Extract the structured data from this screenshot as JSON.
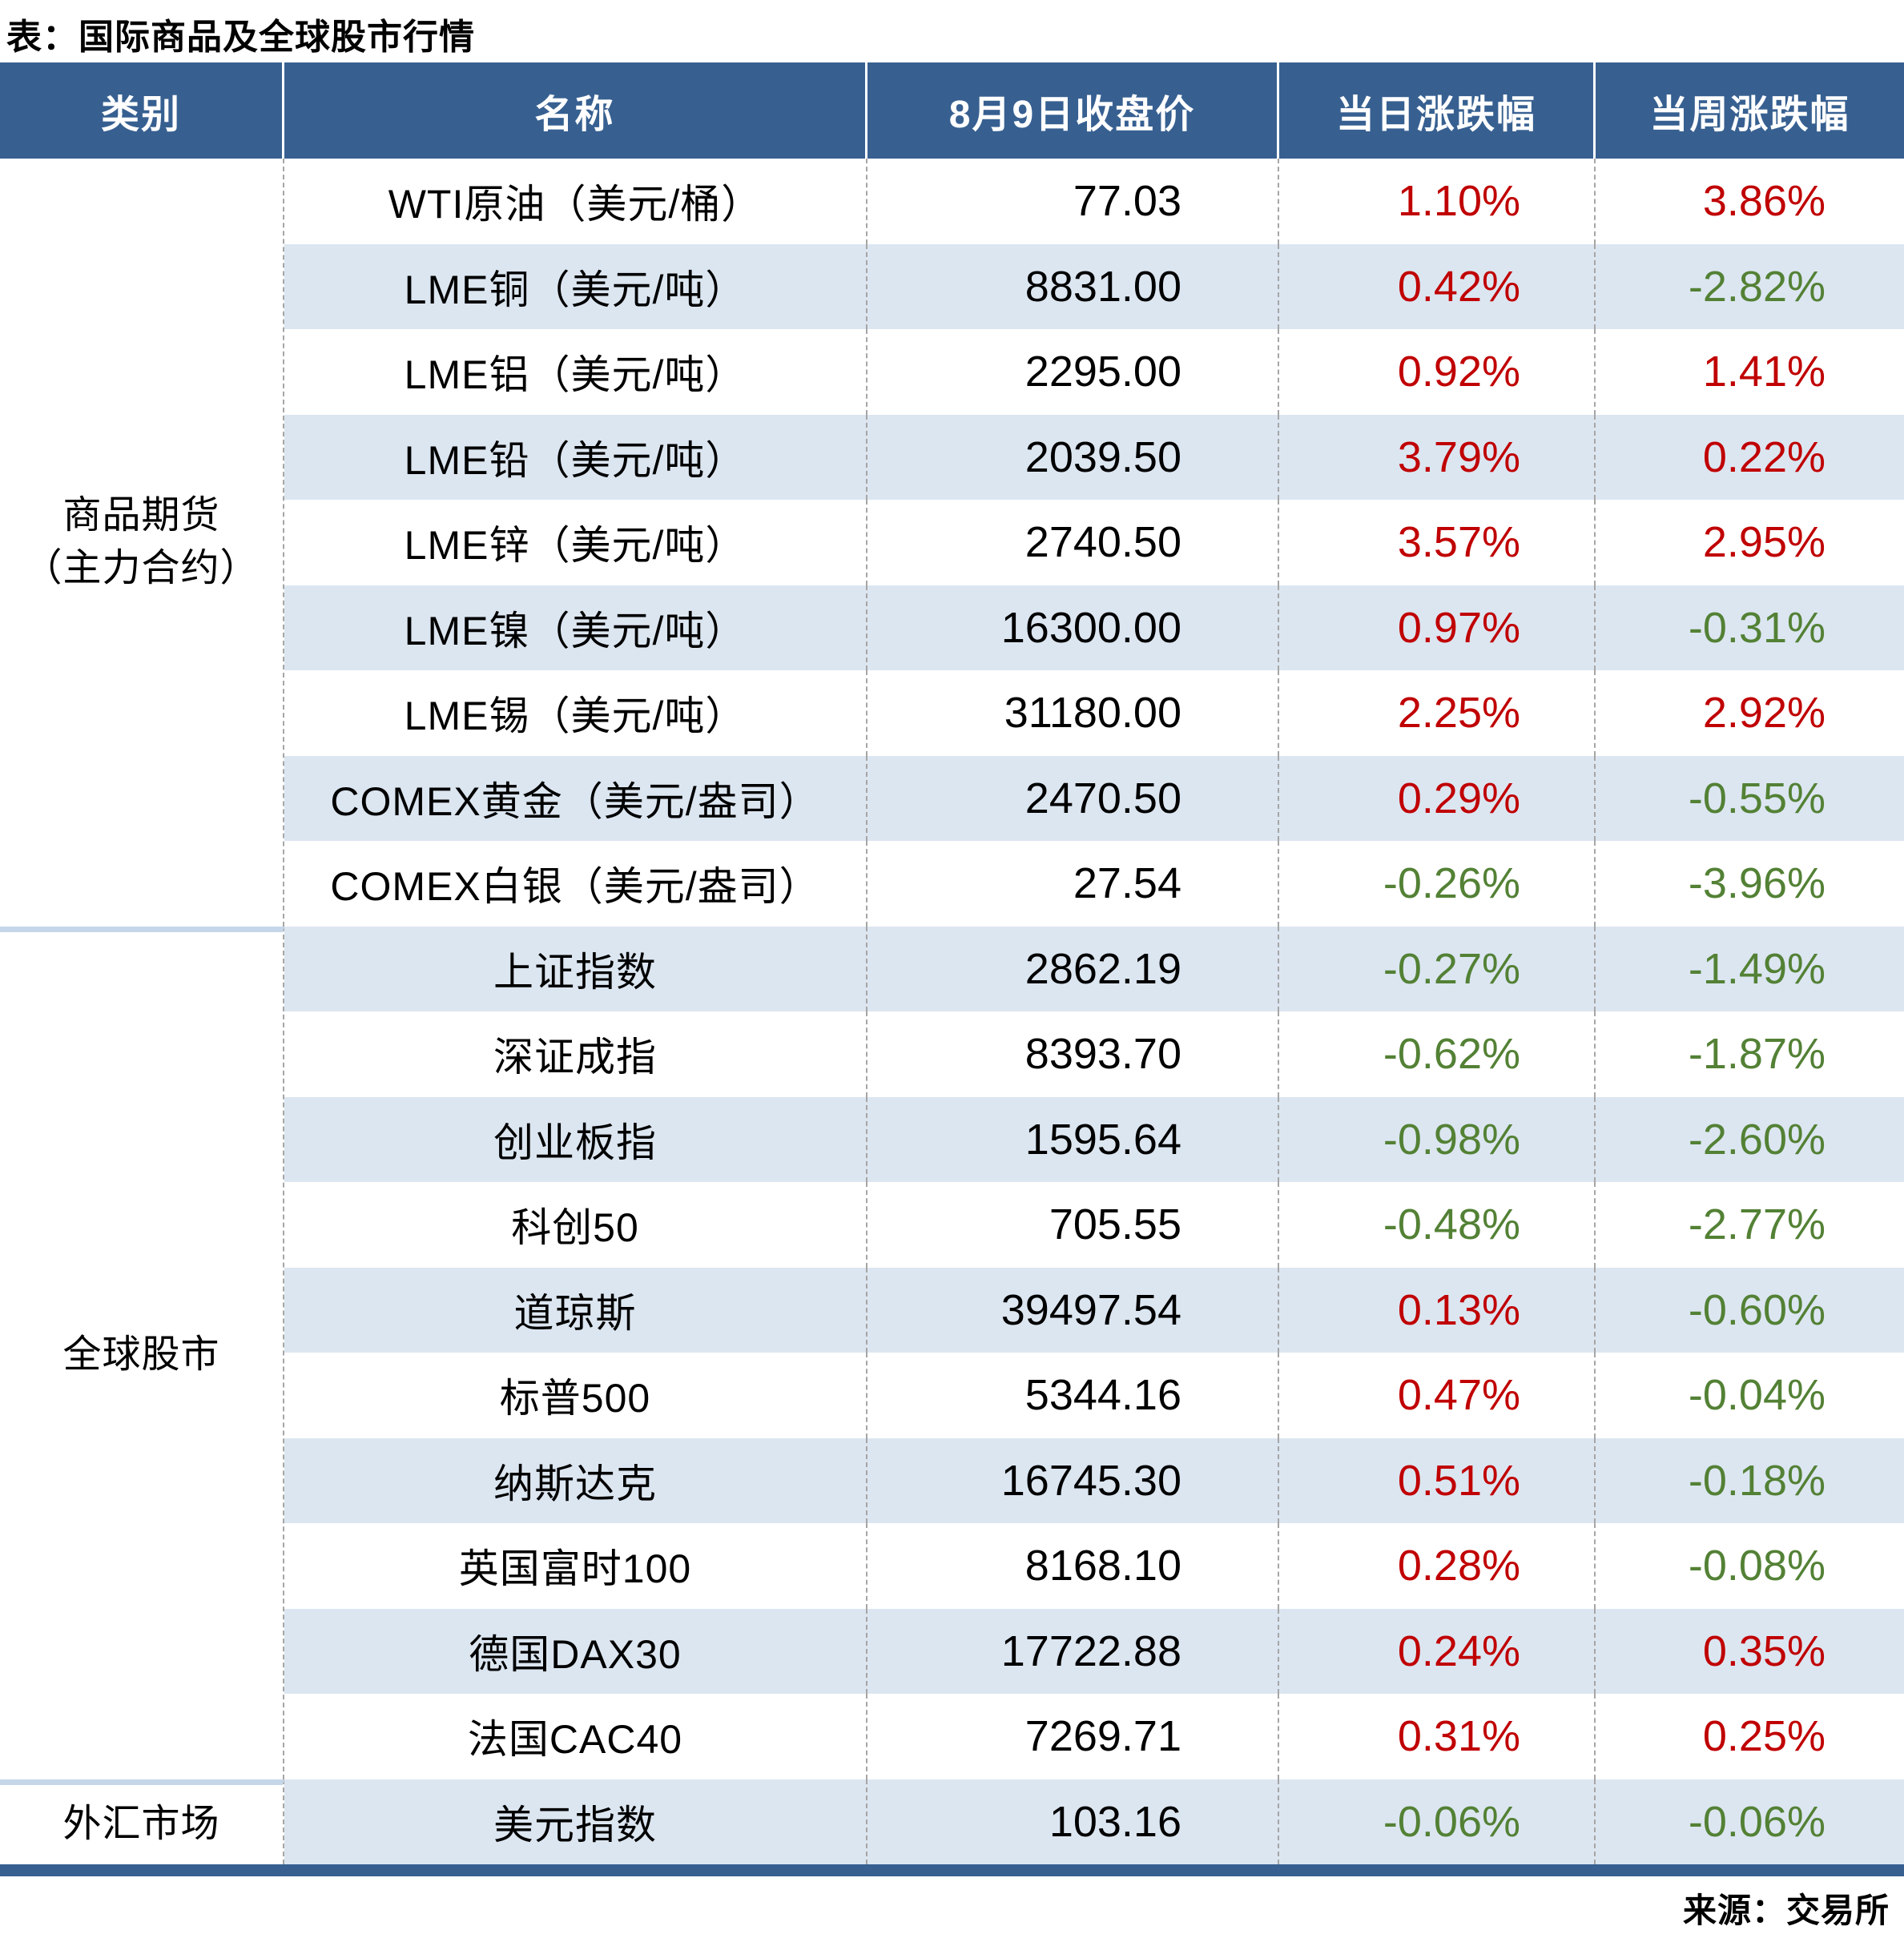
{
  "title": "表：国际商品及全球股市行情",
  "source": "来源：交易所",
  "colors": {
    "header_bg": "#376091",
    "row_alt": "#DCE6F1",
    "up": "#C00000",
    "down": "#538135",
    "divider": "#C5D6E8",
    "dash": "#A6A6A6"
  },
  "chart_data": {
    "type": "table",
    "title": "表：国际商品及全球股市行情",
    "source": "来源：交易所",
    "columns": [
      "类别",
      "名称",
      "8月9日收盘价",
      "当日涨跌幅",
      "当周涨跌幅"
    ],
    "color_rule": "positive change = red (#C00000), negative change = green (#538135)",
    "groups": [
      {
        "category": "商品期货\n（主力合约）",
        "rows": [
          {
            "name": "WTI原油（美元/桶）",
            "close": "77.03",
            "day_change": "1.10%",
            "week_change": "3.86%"
          },
          {
            "name": "LME铜（美元/吨）",
            "close": "8831.00",
            "day_change": "0.42%",
            "week_change": "-2.82%"
          },
          {
            "name": "LME铝（美元/吨）",
            "close": "2295.00",
            "day_change": "0.92%",
            "week_change": "1.41%"
          },
          {
            "name": "LME铅（美元/吨）",
            "close": "2039.50",
            "day_change": "3.79%",
            "week_change": "0.22%"
          },
          {
            "name": "LME锌（美元/吨）",
            "close": "2740.50",
            "day_change": "3.57%",
            "week_change": "2.95%"
          },
          {
            "name": "LME镍（美元/吨）",
            "close": "16300.00",
            "day_change": "0.97%",
            "week_change": "-0.31%"
          },
          {
            "name": "LME锡（美元/吨）",
            "close": "31180.00",
            "day_change": "2.25%",
            "week_change": "2.92%"
          },
          {
            "name": "COMEX黄金（美元/盎司）",
            "close": "2470.50",
            "day_change": "0.29%",
            "week_change": "-0.55%"
          },
          {
            "name": "COMEX白银（美元/盎司）",
            "close": "27.54",
            "day_change": "-0.26%",
            "week_change": "-3.96%"
          }
        ]
      },
      {
        "category": "全球股市",
        "rows": [
          {
            "name": "上证指数",
            "close": "2862.19",
            "day_change": "-0.27%",
            "week_change": "-1.49%"
          },
          {
            "name": "深证成指",
            "close": "8393.70",
            "day_change": "-0.62%",
            "week_change": "-1.87%"
          },
          {
            "name": "创业板指",
            "close": "1595.64",
            "day_change": "-0.98%",
            "week_change": "-2.60%"
          },
          {
            "name": "科创50",
            "close": "705.55",
            "day_change": "-0.48%",
            "week_change": "-2.77%"
          },
          {
            "name": "道琼斯",
            "close": "39497.54",
            "day_change": "0.13%",
            "week_change": "-0.60%"
          },
          {
            "name": "标普500",
            "close": "5344.16",
            "day_change": "0.47%",
            "week_change": "-0.04%"
          },
          {
            "name": "纳斯达克",
            "close": "16745.30",
            "day_change": "0.51%",
            "week_change": "-0.18%"
          },
          {
            "name": "英国富时100",
            "close": "8168.10",
            "day_change": "0.28%",
            "week_change": "-0.08%"
          },
          {
            "name": "德国DAX30",
            "close": "17722.88",
            "day_change": "0.24%",
            "week_change": "0.35%"
          },
          {
            "name": "法国CAC40",
            "close": "7269.71",
            "day_change": "0.31%",
            "week_change": "0.25%"
          }
        ]
      },
      {
        "category": "外汇市场",
        "rows": [
          {
            "name": "美元指数",
            "close": "103.16",
            "day_change": "-0.06%",
            "week_change": "-0.06%"
          }
        ]
      }
    ]
  }
}
